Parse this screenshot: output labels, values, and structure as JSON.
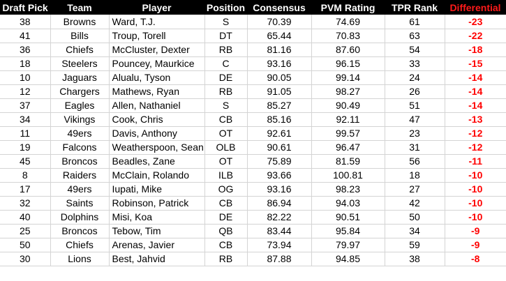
{
  "header": {
    "draft_pick": "Draft Pick",
    "team": "Team",
    "player": "Player",
    "position": "Position",
    "consensus": "Consensus",
    "pvm_rating": "PVM Rating",
    "tpr_rank": "TPR Rank",
    "differential": "Differential"
  },
  "colors": {
    "header_bg": "#000000",
    "header_text": "#ffffff",
    "differential_header": "#ff1a1a",
    "differential_value": "#ff0000"
  },
  "rows": [
    {
      "pick": "38",
      "team": "Browns",
      "player": "Ward, T.J.",
      "position": "S",
      "consensus": "70.39",
      "pvm": "74.69",
      "tpr": "61",
      "diff": "-23"
    },
    {
      "pick": "41",
      "team": "Bills",
      "player": "Troup, Torell",
      "position": "DT",
      "consensus": "65.44",
      "pvm": "70.83",
      "tpr": "63",
      "diff": "-22"
    },
    {
      "pick": "36",
      "team": "Chiefs",
      "player": "McCluster, Dexter",
      "position": "RB",
      "consensus": "81.16",
      "pvm": "87.60",
      "tpr": "54",
      "diff": "-18"
    },
    {
      "pick": "18",
      "team": "Steelers",
      "player": "Pouncey, Maurkice",
      "position": "C",
      "consensus": "93.16",
      "pvm": "96.15",
      "tpr": "33",
      "diff": "-15"
    },
    {
      "pick": "10",
      "team": "Jaguars",
      "player": "Alualu, Tyson",
      "position": "DE",
      "consensus": "90.05",
      "pvm": "99.14",
      "tpr": "24",
      "diff": "-14"
    },
    {
      "pick": "12",
      "team": "Chargers",
      "player": "Mathews, Ryan",
      "position": "RB",
      "consensus": "91.05",
      "pvm": "98.27",
      "tpr": "26",
      "diff": "-14"
    },
    {
      "pick": "37",
      "team": "Eagles",
      "player": "Allen, Nathaniel",
      "position": "S",
      "consensus": "85.27",
      "pvm": "90.49",
      "tpr": "51",
      "diff": "-14"
    },
    {
      "pick": "34",
      "team": "Vikings",
      "player": "Cook, Chris",
      "position": "CB",
      "consensus": "85.16",
      "pvm": "92.11",
      "tpr": "47",
      "diff": "-13"
    },
    {
      "pick": "11",
      "team": "49ers",
      "player": "Davis, Anthony",
      "position": "OT",
      "consensus": "92.61",
      "pvm": "99.57",
      "tpr": "23",
      "diff": "-12"
    },
    {
      "pick": "19",
      "team": "Falcons",
      "player": "Weatherspoon, Sean",
      "position": "OLB",
      "consensus": "90.61",
      "pvm": "96.47",
      "tpr": "31",
      "diff": "-12"
    },
    {
      "pick": "45",
      "team": "Broncos",
      "player": "Beadles, Zane",
      "position": "OT",
      "consensus": "75.89",
      "pvm": "81.59",
      "tpr": "56",
      "diff": "-11"
    },
    {
      "pick": "8",
      "team": "Raiders",
      "player": "McClain, Rolando",
      "position": "ILB",
      "consensus": "93.66",
      "pvm": "100.81",
      "tpr": "18",
      "diff": "-10"
    },
    {
      "pick": "17",
      "team": "49ers",
      "player": "Iupati, Mike",
      "position": "OG",
      "consensus": "93.16",
      "pvm": "98.23",
      "tpr": "27",
      "diff": "-10"
    },
    {
      "pick": "32",
      "team": "Saints",
      "player": "Robinson, Patrick",
      "position": "CB",
      "consensus": "86.94",
      "pvm": "94.03",
      "tpr": "42",
      "diff": "-10"
    },
    {
      "pick": "40",
      "team": "Dolphins",
      "player": "Misi, Koa",
      "position": "DE",
      "consensus": "82.22",
      "pvm": "90.51",
      "tpr": "50",
      "diff": "-10"
    },
    {
      "pick": "25",
      "team": "Broncos",
      "player": "Tebow, Tim",
      "position": "QB",
      "consensus": "83.44",
      "pvm": "95.84",
      "tpr": "34",
      "diff": "-9"
    },
    {
      "pick": "50",
      "team": "Chiefs",
      "player": "Arenas, Javier",
      "position": "CB",
      "consensus": "73.94",
      "pvm": "79.97",
      "tpr": "59",
      "diff": "-9"
    },
    {
      "pick": "30",
      "team": "Lions",
      "player": "Best, Jahvid",
      "position": "RB",
      "consensus": "87.88",
      "pvm": "94.85",
      "tpr": "38",
      "diff": "-8"
    }
  ]
}
